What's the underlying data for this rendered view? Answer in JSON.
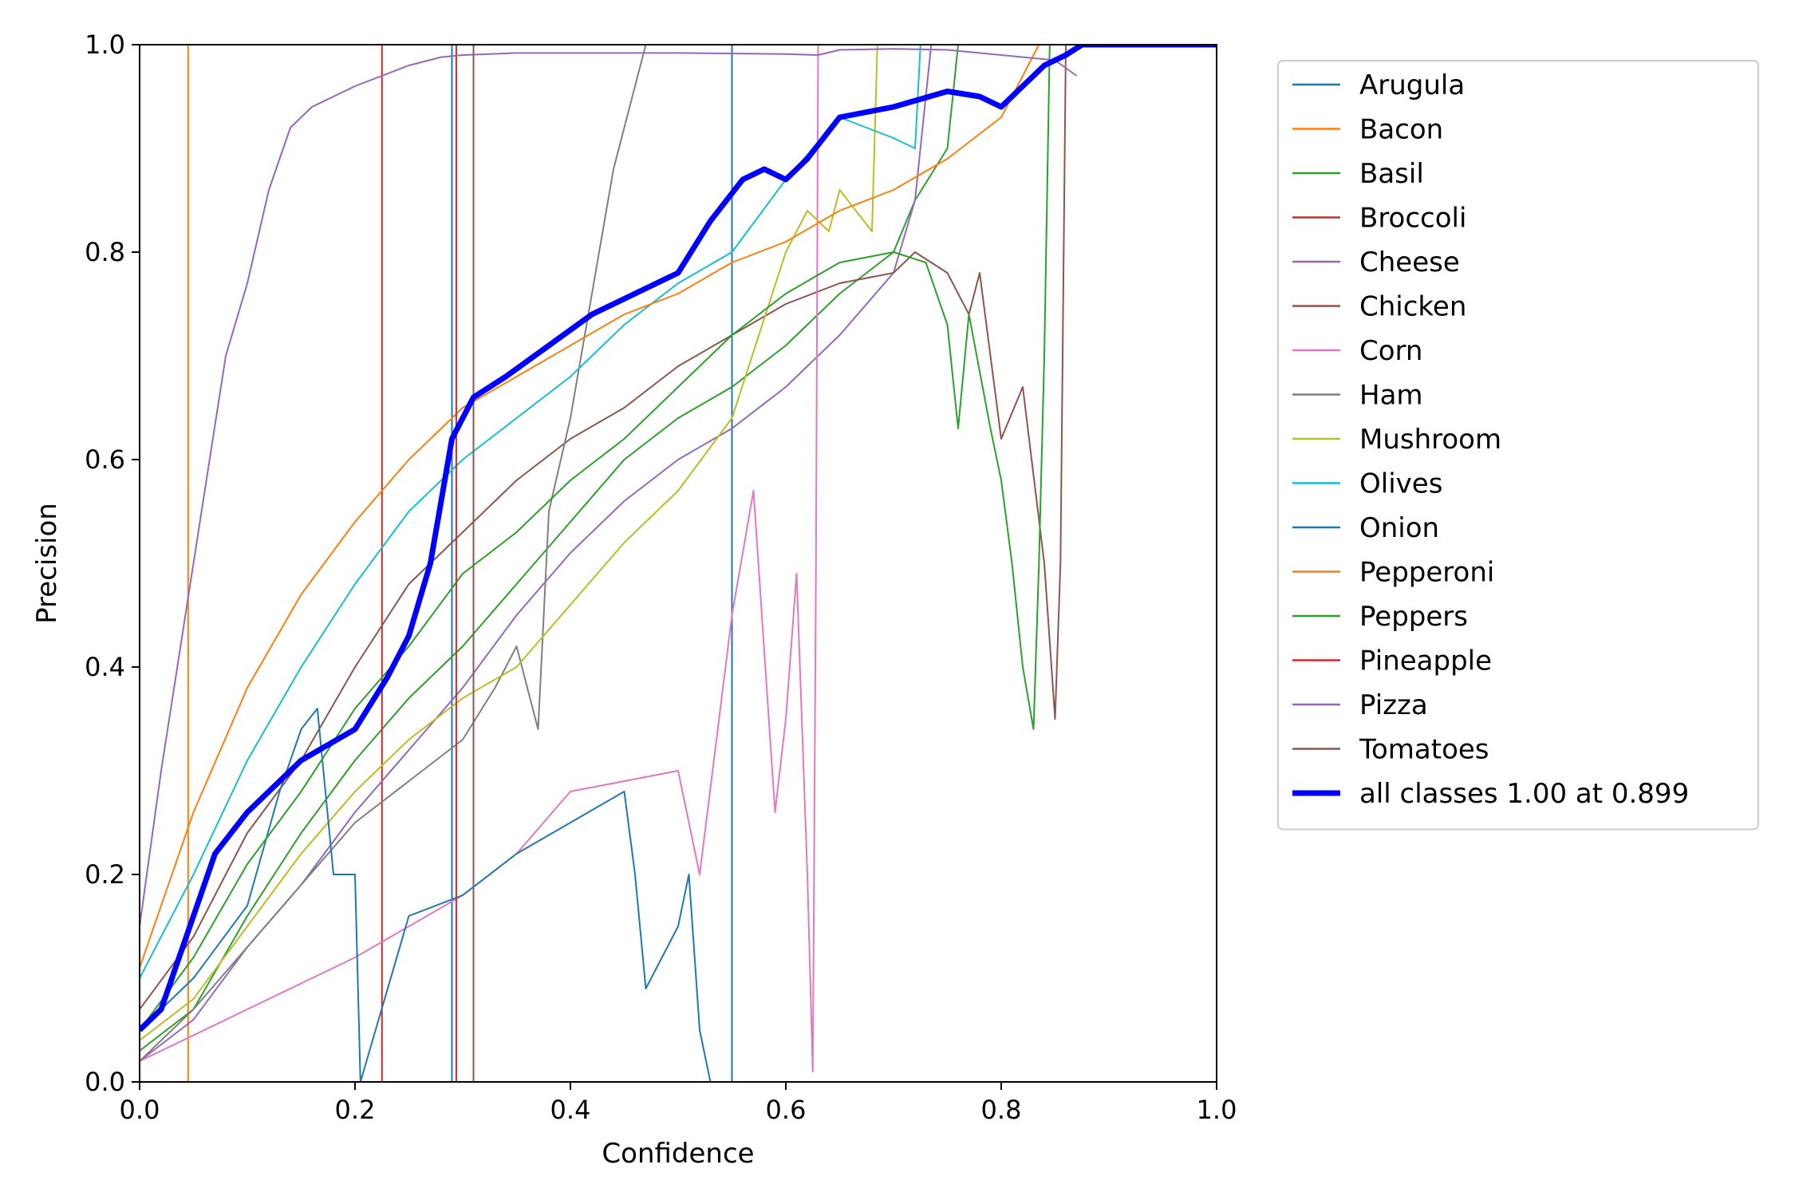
{
  "chart_data": {
    "type": "line",
    "title": "",
    "xlabel": "Confidence",
    "ylabel": "Precision",
    "xlim": [
      0,
      1
    ],
    "ylim": [
      0,
      1
    ],
    "xticks": [
      "0.0",
      "0.2",
      "0.4",
      "0.6",
      "0.8",
      "1.0"
    ],
    "yticks": [
      "0.0",
      "0.2",
      "0.4",
      "0.6",
      "0.8",
      "1.0"
    ],
    "grid": false,
    "legend_position": "outside right, top",
    "series": [
      {
        "name": "Arugula",
        "color": "#1f77b4",
        "width": 1,
        "x": [
          0.0,
          0.29,
          0.29,
          0.55,
          0.55
        ],
        "y": [
          0.0,
          0.0,
          1.0,
          1.0,
          0.0
        ]
      },
      {
        "name": "Bacon",
        "color": "#ff7f0e",
        "width": 1,
        "x": [
          0.0,
          0.045,
          0.045
        ],
        "y": [
          0.0,
          0.0,
          1.0
        ]
      },
      {
        "name": "Basil",
        "color": "#2ca02c",
        "width": 1,
        "x": [
          0.0,
          0.05,
          0.1,
          0.15,
          0.2,
          0.25,
          0.3,
          0.35,
          0.4,
          0.45,
          0.5,
          0.55,
          0.6,
          0.65,
          0.7,
          0.72,
          0.75,
          0.755,
          0.76
        ],
        "y": [
          0.03,
          0.07,
          0.16,
          0.24,
          0.31,
          0.37,
          0.42,
          0.48,
          0.54,
          0.6,
          0.64,
          0.67,
          0.71,
          0.76,
          0.8,
          0.85,
          0.9,
          0.95,
          1.0
        ]
      },
      {
        "name": "Broccoli",
        "color": "#d62728",
        "width": 1,
        "x": [
          0.0,
          0.225,
          0.225
        ],
        "y": [
          0.0,
          0.0,
          1.0
        ]
      },
      {
        "name": "Cheese",
        "color": "#9467bd",
        "width": 1,
        "x": [
          0.0,
          0.05,
          0.1,
          0.15,
          0.2,
          0.25,
          0.3,
          0.35,
          0.4,
          0.45,
          0.5,
          0.55,
          0.6,
          0.65,
          0.7,
          0.72,
          0.73,
          0.735
        ],
        "y": [
          0.02,
          0.06,
          0.13,
          0.19,
          0.26,
          0.32,
          0.38,
          0.45,
          0.51,
          0.56,
          0.6,
          0.63,
          0.67,
          0.72,
          0.78,
          0.85,
          0.95,
          1.0
        ]
      },
      {
        "name": "Chicken",
        "color": "#8c564b",
        "width": 1,
        "x": [
          0.0,
          0.05,
          0.1,
          0.15,
          0.2,
          0.25,
          0.3,
          0.35,
          0.4,
          0.45,
          0.5,
          0.55,
          0.6,
          0.65,
          0.7,
          0.72,
          0.75,
          0.77,
          0.78,
          0.8,
          0.82,
          0.84,
          0.85,
          0.855,
          0.86
        ],
        "y": [
          0.07,
          0.14,
          0.24,
          0.31,
          0.4,
          0.48,
          0.53,
          0.58,
          0.62,
          0.65,
          0.69,
          0.72,
          0.75,
          0.77,
          0.78,
          0.8,
          0.78,
          0.74,
          0.78,
          0.62,
          0.67,
          0.5,
          0.35,
          0.5,
          1.0
        ]
      },
      {
        "name": "Corn",
        "color": "#e377c2",
        "width": 1,
        "x": [
          0.0,
          0.1,
          0.2,
          0.3,
          0.35,
          0.4,
          0.45,
          0.5,
          0.52,
          0.55,
          0.57,
          0.59,
          0.6,
          0.61,
          0.62,
          0.625,
          0.628,
          0.63
        ],
        "y": [
          0.02,
          0.07,
          0.12,
          0.18,
          0.22,
          0.28,
          0.29,
          0.3,
          0.2,
          0.45,
          0.57,
          0.26,
          0.35,
          0.49,
          0.2,
          0.01,
          0.5,
          1.0
        ]
      },
      {
        "name": "Ham",
        "color": "#7f7f7f",
        "width": 1,
        "x": [
          0.0,
          0.05,
          0.1,
          0.15,
          0.2,
          0.25,
          0.3,
          0.33,
          0.35,
          0.37,
          0.38,
          0.4,
          0.42,
          0.44,
          0.47
        ],
        "y": [
          0.02,
          0.07,
          0.13,
          0.19,
          0.25,
          0.29,
          0.33,
          0.38,
          0.42,
          0.34,
          0.55,
          0.64,
          0.76,
          0.88,
          1.0
        ]
      },
      {
        "name": "Mushroom",
        "color": "#bcbd22",
        "width": 1,
        "x": [
          0.0,
          0.05,
          0.1,
          0.15,
          0.2,
          0.25,
          0.3,
          0.35,
          0.4,
          0.45,
          0.5,
          0.55,
          0.6,
          0.62,
          0.64,
          0.65,
          0.68,
          0.685
        ],
        "y": [
          0.04,
          0.08,
          0.15,
          0.22,
          0.28,
          0.33,
          0.37,
          0.4,
          0.46,
          0.52,
          0.57,
          0.64,
          0.8,
          0.84,
          0.82,
          0.86,
          0.82,
          1.0
        ]
      },
      {
        "name": "Olives",
        "color": "#17becf",
        "width": 1,
        "x": [
          0.0,
          0.05,
          0.1,
          0.15,
          0.2,
          0.25,
          0.3,
          0.35,
          0.4,
          0.45,
          0.5,
          0.55,
          0.6,
          0.65,
          0.7,
          0.72,
          0.725
        ],
        "y": [
          0.1,
          0.2,
          0.31,
          0.4,
          0.48,
          0.55,
          0.6,
          0.64,
          0.68,
          0.73,
          0.77,
          0.8,
          0.87,
          0.93,
          0.91,
          0.9,
          1.0
        ]
      },
      {
        "name": "Onion",
        "color": "#1f77b4",
        "width": 1,
        "x": [
          0.0,
          0.05,
          0.1,
          0.13,
          0.15,
          0.165,
          0.18,
          0.2,
          0.205,
          0.25,
          0.3,
          0.35,
          0.4,
          0.45,
          0.46,
          0.47,
          0.5,
          0.51,
          0.52,
          0.53,
          0.55
        ],
        "y": [
          0.05,
          0.1,
          0.17,
          0.28,
          0.34,
          0.36,
          0.2,
          0.2,
          0.0,
          0.16,
          0.18,
          0.22,
          0.25,
          0.28,
          0.2,
          0.09,
          0.15,
          0.2,
          0.05,
          0.0,
          0.0
        ]
      },
      {
        "name": "Pepperoni",
        "color": "#ff7f0e",
        "width": 1,
        "x": [
          0.0,
          0.05,
          0.1,
          0.15,
          0.2,
          0.25,
          0.3,
          0.35,
          0.4,
          0.45,
          0.5,
          0.55,
          0.6,
          0.65,
          0.7,
          0.75,
          0.8,
          0.82,
          0.83,
          0.835
        ],
        "y": [
          0.11,
          0.26,
          0.38,
          0.47,
          0.54,
          0.6,
          0.65,
          0.68,
          0.71,
          0.74,
          0.76,
          0.79,
          0.81,
          0.84,
          0.86,
          0.89,
          0.93,
          0.97,
          0.99,
          1.0
        ]
      },
      {
        "name": "Peppers",
        "color": "#2ca02c",
        "width": 1,
        "x": [
          0.0,
          0.05,
          0.1,
          0.15,
          0.2,
          0.25,
          0.3,
          0.35,
          0.4,
          0.45,
          0.5,
          0.55,
          0.6,
          0.65,
          0.7,
          0.73,
          0.75,
          0.76,
          0.77,
          0.79,
          0.8,
          0.81,
          0.82,
          0.83,
          0.835,
          0.84,
          0.845
        ],
        "y": [
          0.05,
          0.12,
          0.21,
          0.28,
          0.36,
          0.42,
          0.49,
          0.53,
          0.58,
          0.62,
          0.67,
          0.72,
          0.76,
          0.79,
          0.8,
          0.79,
          0.73,
          0.63,
          0.74,
          0.63,
          0.58,
          0.5,
          0.4,
          0.34,
          0.5,
          0.7,
          1.0
        ]
      },
      {
        "name": "Pineapple",
        "color": "#d62728",
        "width": 1,
        "x": [
          0.0,
          0.294,
          0.294
        ],
        "y": [
          0.0,
          0.0,
          1.0
        ]
      },
      {
        "name": "Pizza",
        "color": "#9467bd",
        "width": 1,
        "x": [
          0.0,
          0.02,
          0.05,
          0.08,
          0.1,
          0.12,
          0.14,
          0.16,
          0.2,
          0.25,
          0.28,
          0.3,
          0.35,
          0.5,
          0.6,
          0.63,
          0.65,
          0.7,
          0.75,
          0.8,
          0.85,
          0.87
        ],
        "y": [
          0.15,
          0.3,
          0.5,
          0.7,
          0.77,
          0.86,
          0.92,
          0.94,
          0.96,
          0.98,
          0.988,
          0.99,
          0.992,
          0.992,
          0.991,
          0.99,
          0.995,
          0.996,
          0.995,
          0.99,
          0.985,
          0.97
        ]
      },
      {
        "name": "Tomatoes",
        "color": "#8c564b",
        "width": 1,
        "x": [
          0.0,
          0.31,
          0.31
        ],
        "y": [
          0.0,
          0.0,
          1.0
        ]
      },
      {
        "name": "all classes 1.00 at 0.899",
        "color": "#0000ff",
        "width": 6,
        "x": [
          0.0,
          0.02,
          0.04,
          0.07,
          0.1,
          0.15,
          0.2,
          0.23,
          0.25,
          0.27,
          0.29,
          0.31,
          0.34,
          0.38,
          0.42,
          0.46,
          0.5,
          0.53,
          0.56,
          0.58,
          0.6,
          0.62,
          0.65,
          0.7,
          0.75,
          0.78,
          0.8,
          0.82,
          0.84,
          0.86,
          0.875,
          0.9,
          1.0
        ],
        "y": [
          0.05,
          0.07,
          0.13,
          0.22,
          0.26,
          0.31,
          0.34,
          0.39,
          0.43,
          0.5,
          0.62,
          0.66,
          0.68,
          0.71,
          0.74,
          0.76,
          0.78,
          0.83,
          0.87,
          0.88,
          0.87,
          0.89,
          0.93,
          0.94,
          0.955,
          0.95,
          0.94,
          0.96,
          0.98,
          0.99,
          1.0,
          1.0,
          1.0
        ]
      }
    ]
  }
}
